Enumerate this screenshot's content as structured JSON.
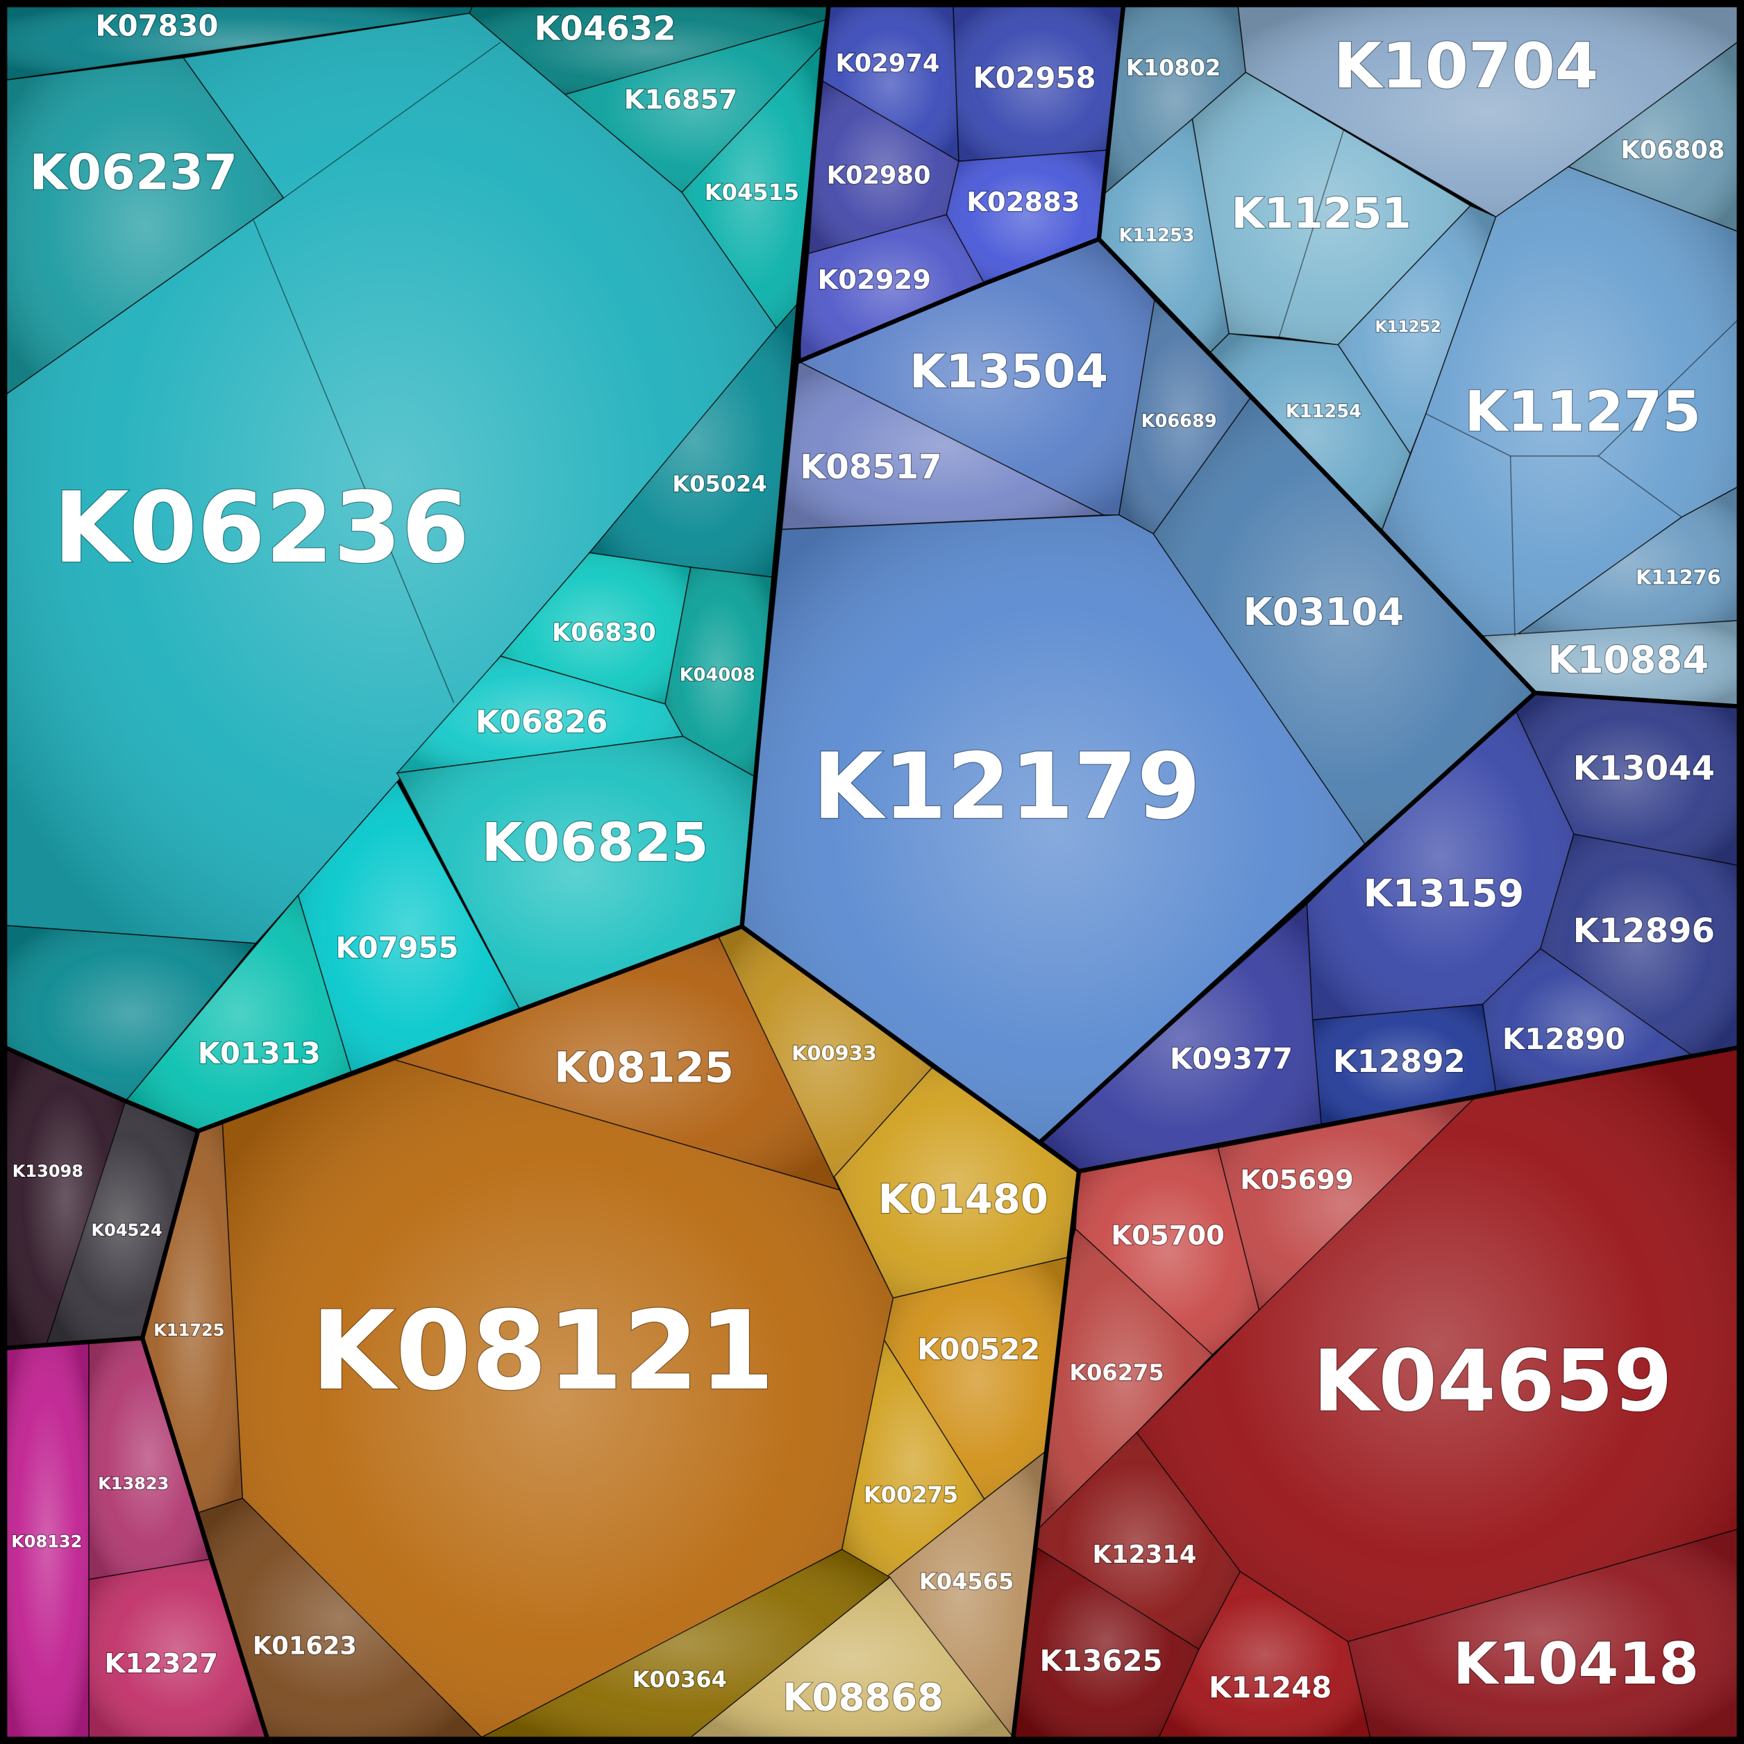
{
  "chart_data": {
    "type": "voronoi-treemap",
    "title": "",
    "groups": [
      {
        "color": "#1aa8b0",
        "cells": [
          {
            "id": "K07830",
            "color": "#0a8088"
          },
          {
            "id": "K04632",
            "color": "#077e7e"
          },
          {
            "id": "K16857",
            "color": "#0aa09c"
          },
          {
            "id": "K04515",
            "color": "#0ab0aa"
          },
          {
            "id": "K06237",
            "color": "#1a9aa0"
          },
          {
            "id": "K06236",
            "color": "#1fb0bc"
          },
          {
            "id": "K05024",
            "color": "#0a8a94"
          },
          {
            "id": "K06830",
            "color": "#10c8c0"
          },
          {
            "id": "K04008",
            "color": "#0aa098"
          },
          {
            "id": "K06826",
            "color": "#15c8c8"
          },
          {
            "id": "K06825",
            "color": "#1ec0c0"
          },
          {
            "id": "K07955",
            "color": "#05c8cc"
          },
          {
            "id": "K01313",
            "color": "#08c0b0"
          }
        ]
      },
      {
        "color": "#4050b8",
        "cells": [
          {
            "id": "K02974",
            "color": "#3a4ab8"
          },
          {
            "id": "K02958",
            "color": "#3848b0"
          },
          {
            "id": "K02980",
            "color": "#4448a8"
          },
          {
            "id": "K02883",
            "color": "#4858d8"
          },
          {
            "id": "K02929",
            "color": "#5058c8"
          }
        ]
      },
      {
        "color": "#5a84c8",
        "cells": [
          {
            "id": "K13504",
            "color": "#5a80c8"
          },
          {
            "id": "K08517",
            "color": "#7888c8"
          },
          {
            "id": "K06689",
            "color": "#4f78a8"
          },
          {
            "id": "K12179",
            "color": "#5a8ad0"
          },
          {
            "id": "K03104",
            "color": "#4f80b0"
          }
        ]
      },
      {
        "color": "#78a8c8",
        "cells": [
          {
            "id": "K10802",
            "color": "#5a8aa8"
          },
          {
            "id": "K10704",
            "color": "#8aa8c8"
          },
          {
            "id": "K06808",
            "color": "#6a98b0"
          },
          {
            "id": "K11253",
            "color": "#6aa8c8"
          },
          {
            "id": "K11251",
            "color": "#80b8d0"
          },
          {
            "id": "K11252",
            "color": "#70a8d0"
          },
          {
            "id": "K11254",
            "color": "#6aa8c8"
          },
          {
            "id": "K11275",
            "color": "#6aa0d0"
          },
          {
            "id": "K11276",
            "color": "#6a9ac0"
          },
          {
            "id": "K10884",
            "color": "#8ab0c8"
          }
        ]
      },
      {
        "color": "#323e98",
        "cells": [
          {
            "id": "K13044",
            "color": "#303c88"
          },
          {
            "id": "K13159",
            "color": "#3a48a8"
          },
          {
            "id": "K12896",
            "color": "#303c8a"
          },
          {
            "id": "K12890",
            "color": "#3444a0"
          },
          {
            "id": "K12892",
            "color": "#223a98"
          },
          {
            "id": "K09377",
            "color": "#3a40a0"
          }
        ]
      },
      {
        "color": "#981418",
        "cells": [
          {
            "id": "K05699",
            "color": "#c04848"
          },
          {
            "id": "K05700",
            "color": "#c84a48"
          },
          {
            "id": "K06275",
            "color": "#b84440"
          },
          {
            "id": "K04659",
            "color": "#981418"
          },
          {
            "id": "K12314",
            "color": "#8a1818"
          },
          {
            "id": "K13625",
            "color": "#7a0c10"
          },
          {
            "id": "K11248",
            "color": "#a01418"
          },
          {
            "id": "K10418",
            "color": "#901820"
          }
        ]
      },
      {
        "color": "#b86a10",
        "cells": [
          {
            "id": "K08125",
            "color": "#b06010"
          },
          {
            "id": "K08121",
            "color": "#b86a10"
          },
          {
            "id": "K00933",
            "color": "#c09020"
          },
          {
            "id": "K01480",
            "color": "#d0a020"
          },
          {
            "id": "K00522",
            "color": "#d09018"
          },
          {
            "id": "K00275",
            "color": "#d0a020"
          },
          {
            "id": "K04565",
            "color": "#b89060"
          },
          {
            "id": "K08868",
            "color": "#d0b870"
          },
          {
            "id": "K00364",
            "color": "#8a6a00"
          },
          {
            "id": "K01623",
            "color": "#7a4a20"
          },
          {
            "id": "K11725",
            "color": "#a06028"
          }
        ]
      },
      {
        "color": "#34283a",
        "cells": [
          {
            "id": "K13098",
            "color": "#301828"
          },
          {
            "id": "K04524",
            "color": "#38343c"
          }
        ]
      },
      {
        "color": "#c03080",
        "cells": [
          {
            "id": "K08132",
            "color": "#c02090"
          },
          {
            "id": "K13823",
            "color": "#b03870"
          },
          {
            "id": "K12327",
            "color": "#c03068"
          }
        ]
      }
    ]
  }
}
